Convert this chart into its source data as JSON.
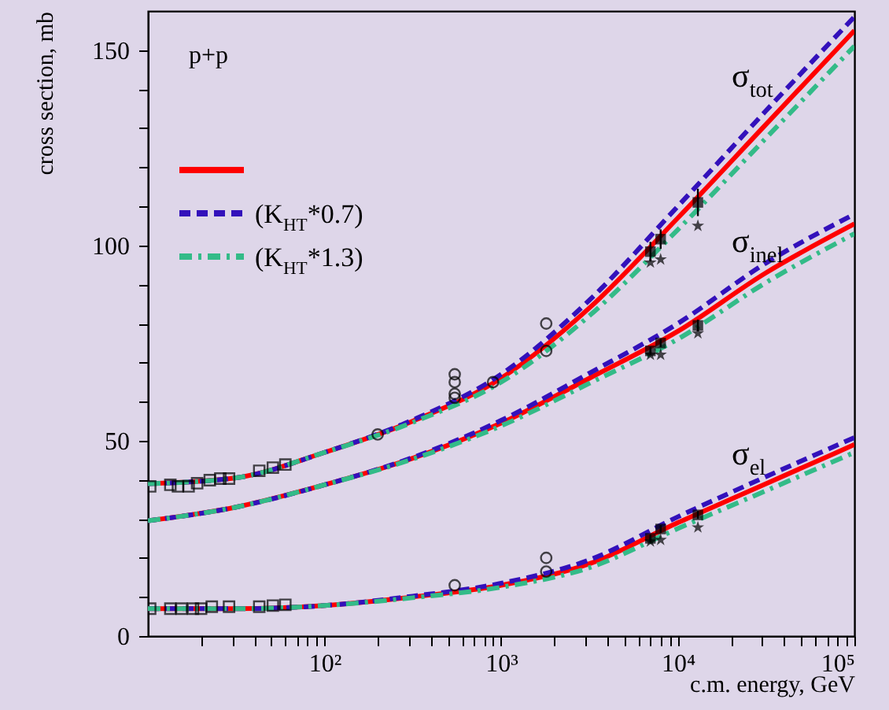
{
  "chart_data": {
    "type": "line",
    "xlabel": "c.m. energy, GeV",
    "ylabel": "cross section, mb",
    "x": [
      10,
      31.6,
      100,
      316,
      1000,
      3162,
      10000,
      31623,
      100000
    ],
    "xlim": [
      10,
      100000
    ],
    "ylim": [
      0,
      160
    ],
    "xticks": [
      {
        "value": 20,
        "label": null
      },
      {
        "value": 30,
        "label": null
      },
      {
        "value": 40,
        "label": null
      },
      {
        "value": 50,
        "label": null
      },
      {
        "value": 60,
        "label": null
      },
      {
        "value": 70,
        "label": null
      },
      {
        "value": 80,
        "label": null
      },
      {
        "value": 90,
        "label": null
      },
      {
        "value": 100,
        "label": "10²"
      },
      {
        "value": 200,
        "label": null
      },
      {
        "value": 300,
        "label": null
      },
      {
        "value": 400,
        "label": null
      },
      {
        "value": 500,
        "label": null
      },
      {
        "value": 600,
        "label": null
      },
      {
        "value": 700,
        "label": null
      },
      {
        "value": 800,
        "label": null
      },
      {
        "value": 900,
        "label": null
      },
      {
        "value": 1000,
        "label": "10³"
      },
      {
        "value": 2000,
        "label": null
      },
      {
        "value": 3000,
        "label": null
      },
      {
        "value": 4000,
        "label": null
      },
      {
        "value": 5000,
        "label": null
      },
      {
        "value": 6000,
        "label": null
      },
      {
        "value": 7000,
        "label": null
      },
      {
        "value": 8000,
        "label": null
      },
      {
        "value": 9000,
        "label": null
      },
      {
        "value": 10000,
        "label": "10⁴"
      },
      {
        "value": 20000,
        "label": null
      },
      {
        "value": 30000,
        "label": null
      },
      {
        "value": 40000,
        "label": null
      },
      {
        "value": 50000,
        "label": null
      },
      {
        "value": 60000,
        "label": null
      },
      {
        "value": 70000,
        "label": null
      },
      {
        "value": 80000,
        "label": null
      },
      {
        "value": 90000,
        "label": null
      },
      {
        "value": 100000,
        "label": "10⁵"
      }
    ],
    "yticks": [
      0,
      {
        "value": 10,
        "label": null
      },
      {
        "value": 20,
        "label": null
      },
      {
        "value": 30,
        "label": null
      },
      {
        "value": 40,
        "label": null
      },
      50,
      {
        "value": 60,
        "label": null
      },
      {
        "value": 70,
        "label": null
      },
      {
        "value": 80,
        "label": null
      },
      {
        "value": 90,
        "label": null
      },
      100,
      {
        "value": 110,
        "label": null
      },
      {
        "value": 120,
        "label": null
      },
      {
        "value": 130,
        "label": null
      },
      {
        "value": 140,
        "label": null
      },
      150
    ],
    "log": "x",
    "legend": "top left",
    "annotations": [
      "p+p",
      "σ$_{tot}$",
      "σ$_{inel}$",
      "σ$_{el}$"
    ],
    "series": [
      {
        "color": "#ff0000",
        "line_style": "solid",
        "values": [
          39,
          40.5,
          47,
          55,
          66,
          84,
          107,
          131,
          155
        ]
      },
      {
        "color": "#ff0000",
        "line_style": "solid",
        "values": [
          29.5,
          33,
          38.7,
          45.5,
          54.5,
          66,
          78,
          93,
          105.5
        ]
      },
      {
        "color": "#ff0000",
        "line_style": "solid",
        "values": [
          7,
          7,
          7.8,
          10,
          13,
          18.5,
          29,
          39,
          49
        ]
      },
      {
        "name": "(K$_{HT}$*0.7)",
        "color": "#3311bb",
        "line_style": "dashed",
        "values": [
          39,
          40.5,
          47,
          55.3,
          67,
          86,
          110,
          134.5,
          158.5
        ]
      },
      {
        "color": "#3311bb",
        "line_style": "dashed",
        "values": [
          29.5,
          33,
          38.7,
          45.7,
          55.2,
          67.3,
          80,
          95.5,
          108
        ]
      },
      {
        "color": "#3311bb",
        "line_style": "dashed",
        "values": [
          7,
          7,
          7.8,
          10.2,
          13.5,
          19.5,
          30.5,
          40.8,
          50.8
        ]
      },
      {
        "name": "(K$_{HT}$*1.3)",
        "color": "#33bb88",
        "line_style": "dotted",
        "values": [
          39,
          40.5,
          47,
          54.7,
          65,
          82,
          104,
          127.5,
          151
        ]
      },
      {
        "color": "#33bb88",
        "line_style": "dotted",
        "values": [
          29.5,
          33,
          38.7,
          45.3,
          53.8,
          64.7,
          76,
          90.5,
          103
        ]
      },
      {
        "color": "#33bb88",
        "line_style": "dotted",
        "values": [
          7,
          7,
          7.8,
          9.8,
          12.5,
          17.5,
          27.5,
          37.2,
          47
        ]
      },
      {
        "type": "scatter",
        "marker": "square",
        "color": "#000000",
        "x": [
          10.3,
          13.4,
          14.8,
          17,
          19,
          22.4,
          25.7,
          28.8,
          42.7,
          51,
          60,
          10.3,
          13.4,
          15.5,
          18,
          20,
          23,
          28.8,
          42.7,
          51,
          60
        ],
        "values": [
          38.3,
          38.7,
          38.3,
          38.3,
          39.1,
          39.9,
          40.3,
          40.3,
          42.3,
          43.1,
          43.9,
          7,
          7,
          7,
          7,
          7,
          7.5,
          7.5,
          7.5,
          7.8,
          8
        ]
      },
      {
        "type": "scatter",
        "marker": "circle",
        "color": "#000000",
        "x": [
          200,
          546,
          546,
          546,
          546,
          900,
          1800,
          1800,
          546,
          1800,
          1800
        ],
        "values": [
          51.6,
          67,
          65,
          62,
          61,
          65,
          80,
          73,
          13,
          20,
          16.5
        ]
      },
      {
        "type": "scatter",
        "marker": "square",
        "color": "#000000",
        "x": [
          7000,
          8000,
          13000,
          7000,
          8000,
          13000,
          7000,
          8000,
          13000
        ],
        "values": [
          98.4,
          101.6,
          111,
          73,
          75,
          79.5,
          25,
          27.4,
          31
        ],
        "errors": [
          2.5,
          2.5,
          3.5,
          1,
          1,
          1.5,
          1,
          1,
          1
        ]
      },
      {
        "type": "scatter",
        "marker": "star",
        "color": "#000000",
        "x": [
          7000,
          8000,
          13000,
          7000,
          8000,
          13000,
          7000,
          8000,
          13000
        ],
        "values": [
          95.6,
          96.4,
          105,
          72,
          72,
          77.5,
          24.2,
          24.6,
          27.8
        ]
      }
    ]
  }
}
